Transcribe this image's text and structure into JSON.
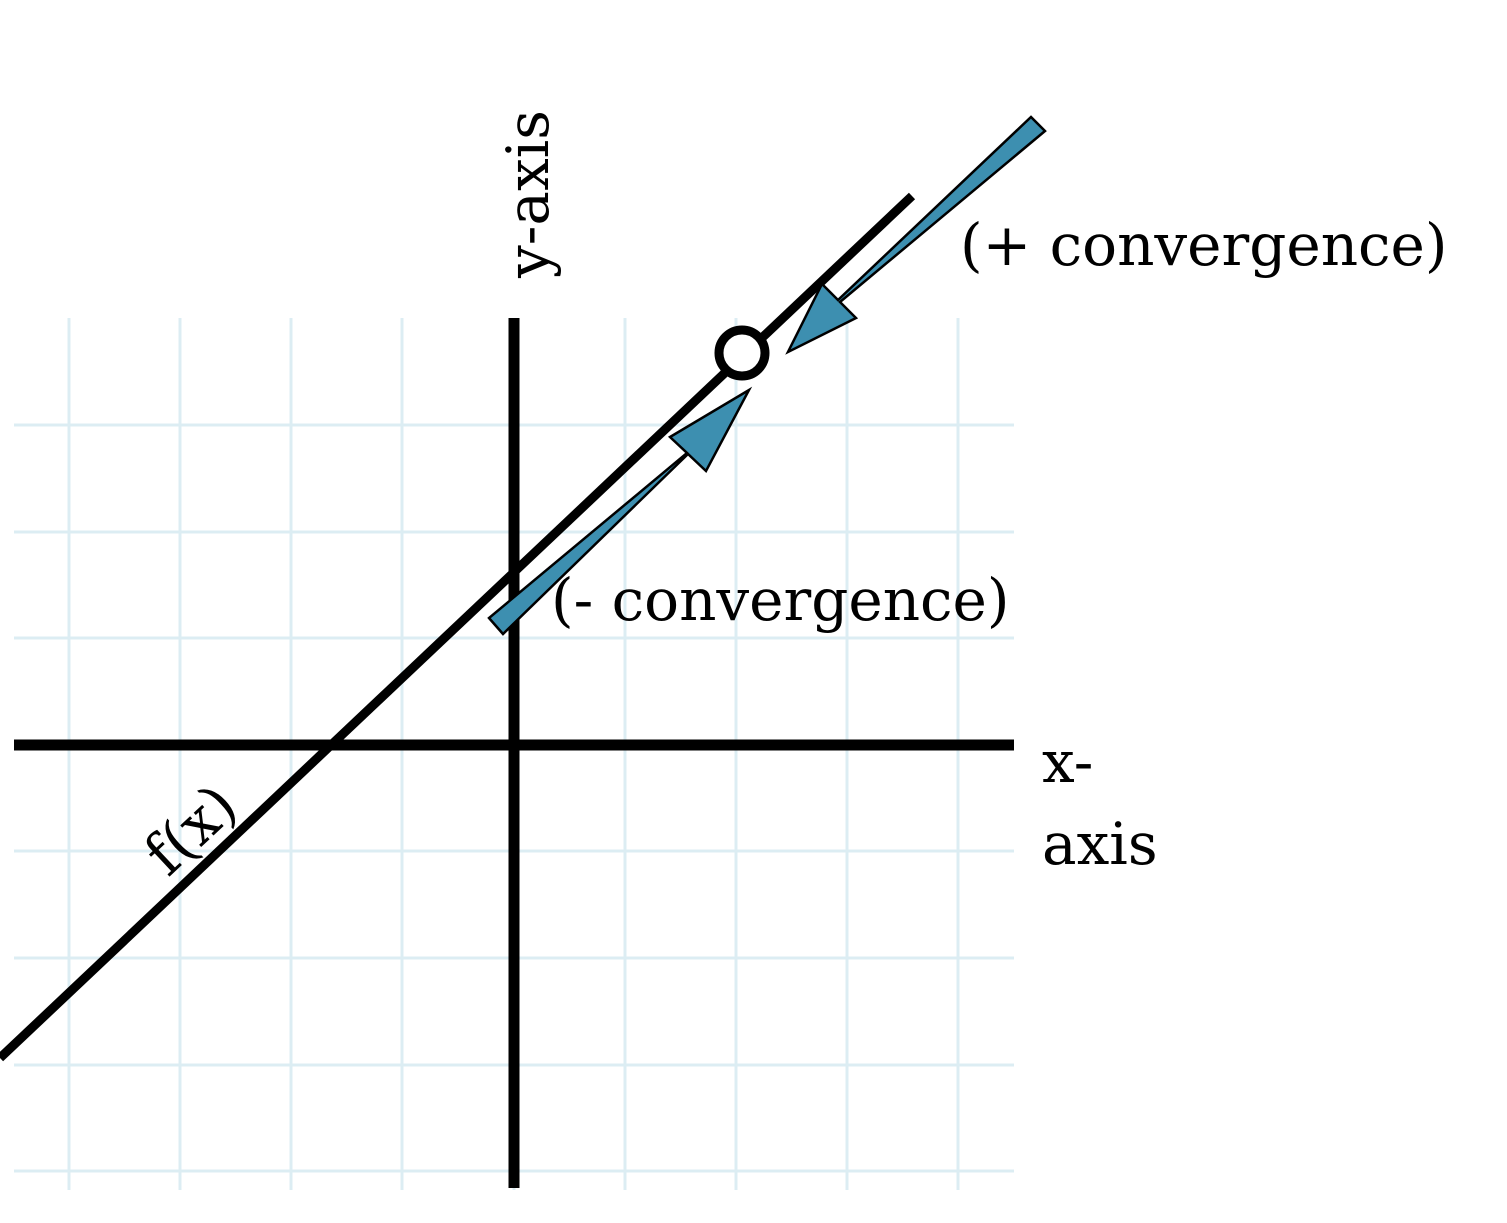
{
  "labels": {
    "y_axis": "y-axis",
    "x_axis_line1": "x-",
    "x_axis_line2": "axis",
    "function": "f(x)",
    "plus_convergence": "(+ convergence)",
    "minus_convergence": "(- convergence)"
  },
  "colors": {
    "arrow_fill": "#3d8fb0",
    "grid": "#dcedf3",
    "axis": "#000000",
    "function": "#000000",
    "open_point_fill": "#ffffff"
  },
  "features": {
    "grid": true,
    "open_circle_at_limit": true,
    "arrows_direction": "both arrows point toward the open circle along f(x)"
  }
}
